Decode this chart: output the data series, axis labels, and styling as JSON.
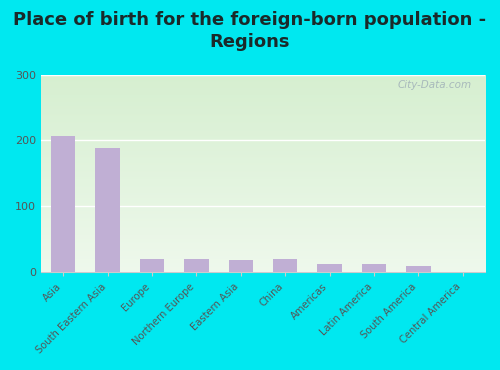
{
  "title": "Place of birth for the foreign-born population -\nRegions",
  "categories": [
    "Asia",
    "South Eastern Asia",
    "Europe",
    "Northern Europe",
    "Eastern Asia",
    "China",
    "Americas",
    "Latin America",
    "South America",
    "Central America"
  ],
  "values": [
    207,
    188,
    20,
    20,
    19,
    20,
    13,
    13,
    9,
    1
  ],
  "bar_color": "#c0afd4",
  "ylim": [
    0,
    300
  ],
  "yticks": [
    0,
    100,
    200,
    300
  ],
  "bg_outer": "#00e8f0",
  "bg_grad_top": "#d6efd0",
  "bg_grad_bottom": "#f5f8f0",
  "title_fontsize": 13,
  "title_color": "#1a2a2a",
  "watermark": "City-Data.com",
  "tick_color": "#555555",
  "spine_color": "#cccccc"
}
